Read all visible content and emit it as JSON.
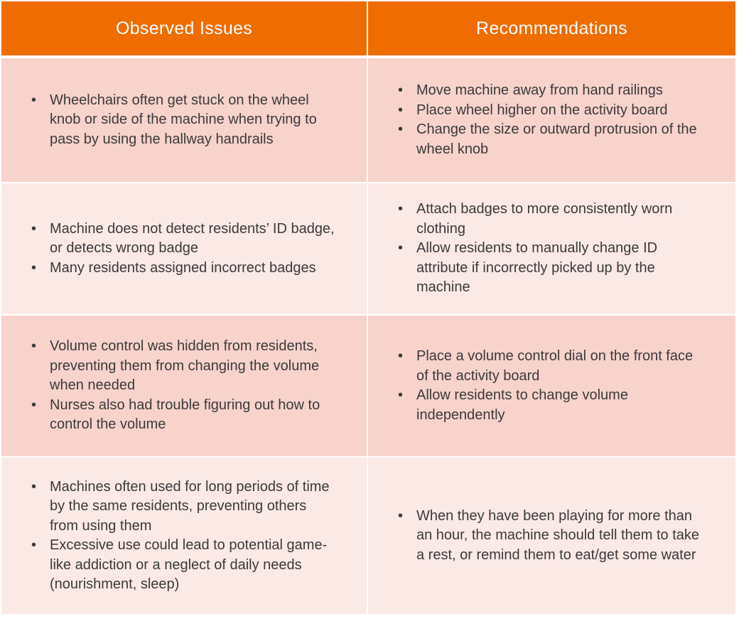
{
  "headers": {
    "left": "Observed Issues",
    "right": "Recommendations"
  },
  "rows": [
    {
      "issues": [
        "Wheelchairs often get stuck on the wheel knob or side of the machine when trying to pass by using the hallway handrails"
      ],
      "recommendations": [
        "Move machine away from hand railings",
        "Place wheel higher on the activity board",
        "Change the size or outward protrusion of the wheel knob"
      ]
    },
    {
      "issues": [
        "Machine does not detect residents’ ID badge, or detects wrong badge",
        "Many residents assigned incorrect badges"
      ],
      "recommendations": [
        "Attach badges to more consistently worn clothing",
        "Allow residents to manually change ID attribute if incorrectly picked up by the machine"
      ]
    },
    {
      "issues": [
        "Volume control was hidden from residents, preventing them from changing the volume when needed",
        "Nurses also had trouble figuring out how to control the volume"
      ],
      "recommendations": [
        "Place a volume control dial on the front face of the activity board",
        "Allow residents to change volume independently"
      ]
    },
    {
      "issues": [
        "Machines often used for long periods of time by the same residents, preventing others from using them",
        "Excessive use could lead to potential game-like addiction or a neglect of daily needs (nourishment, sleep)"
      ],
      "recommendations": [
        "When they have been playing for more than an hour, the machine should tell them to take a rest, or remind them to eat/get some water"
      ]
    }
  ],
  "colors": {
    "header_bg": "#ef6c00",
    "header_text": "#ffffff",
    "row_dark": "#f7d3cc",
    "row_light": "#fbe9e6",
    "body_text": "#3a3a3a"
  }
}
